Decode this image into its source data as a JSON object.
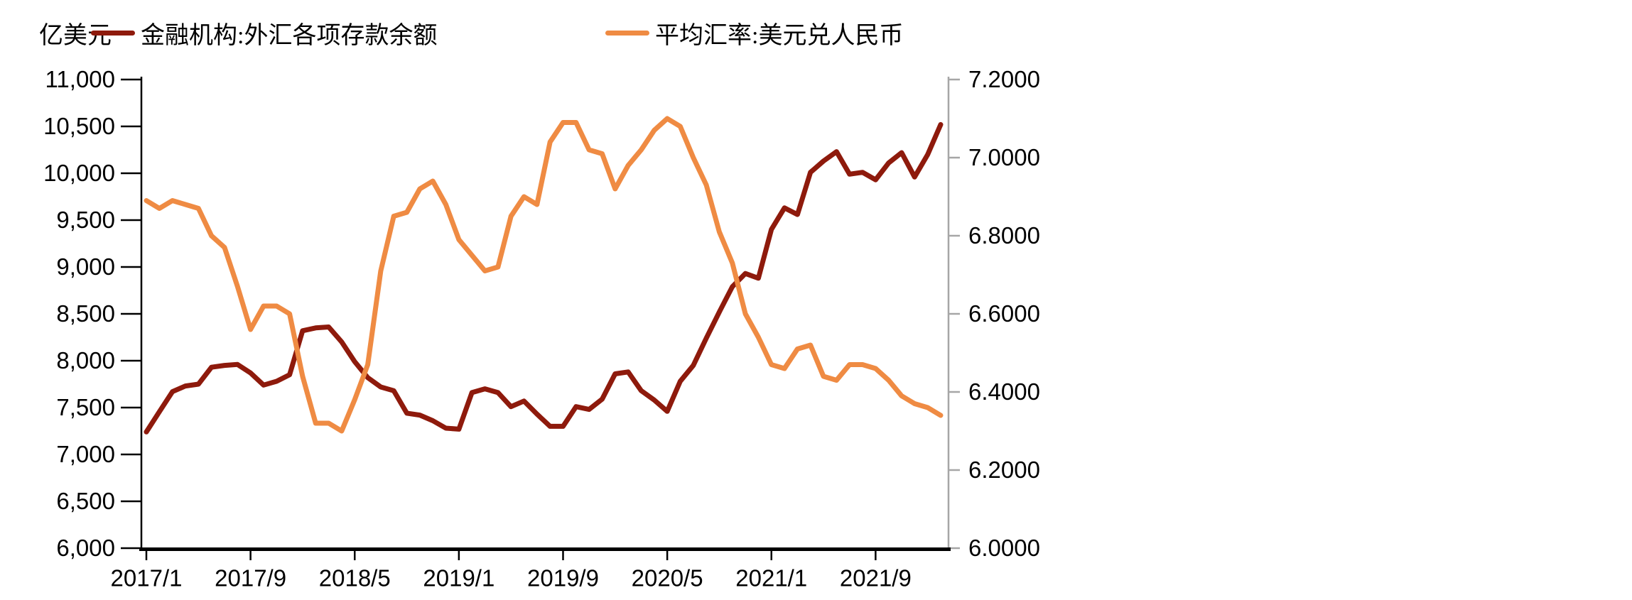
{
  "chart": {
    "unit_left": "亿美元",
    "legend": {
      "deposits_label": "金融机构:外汇各项存款余额",
      "rate_label": "平均汇率:美元兑人民币"
    },
    "colors": {
      "deposits": "#8E1A0C",
      "rate": "#EF8B43",
      "axis_left": "#000000",
      "axis_right": "#A6A6A6",
      "text": "#000000",
      "background": "#FFFFFF"
    }
  },
  "chart_data": {
    "type": "line",
    "title": "",
    "xlabel": "",
    "ylabel_left": "亿美元",
    "ylabel_right": "",
    "grid": false,
    "legend_position": "top",
    "categories": [
      "2017/1",
      "2017/2",
      "2017/3",
      "2017/4",
      "2017/5",
      "2017/6",
      "2017/7",
      "2017/8",
      "2017/9",
      "2017/10",
      "2017/11",
      "2017/12",
      "2018/1",
      "2018/2",
      "2018/3",
      "2018/4",
      "2018/5",
      "2018/6",
      "2018/7",
      "2018/8",
      "2018/9",
      "2018/10",
      "2018/11",
      "2018/12",
      "2019/1",
      "2019/2",
      "2019/3",
      "2019/4",
      "2019/5",
      "2019/6",
      "2019/7",
      "2019/8",
      "2019/9",
      "2019/10",
      "2019/11",
      "2019/12",
      "2020/1",
      "2020/2",
      "2020/3",
      "2020/4",
      "2020/5",
      "2020/6",
      "2020/7",
      "2020/8",
      "2020/9",
      "2020/10",
      "2020/11",
      "2020/12",
      "2021/1",
      "2021/2",
      "2021/3",
      "2021/4",
      "2021/5",
      "2021/6",
      "2021/7",
      "2021/8",
      "2021/9",
      "2021/10",
      "2021/11",
      "2021/12",
      "2022/1",
      "2022/2"
    ],
    "x_tick_labels": [
      "2017/1",
      "2017/9",
      "2018/5",
      "2019/1",
      "2019/9",
      "2020/5",
      "2021/1",
      "2021/9"
    ],
    "series": [
      {
        "name": "金融机构:外汇各项存款余额",
        "axis": "left",
        "color": "#8E1A0C",
        "values": [
          7240,
          7455,
          7670,
          7730,
          7750,
          7930,
          7950,
          7960,
          7870,
          7740,
          7780,
          7850,
          8320,
          8350,
          8360,
          8200,
          7990,
          7820,
          7720,
          7680,
          7440,
          7420,
          7360,
          7280,
          7270,
          7660,
          7700,
          7660,
          7510,
          7570,
          7430,
          7300,
          7300,
          7510,
          7480,
          7590,
          7860,
          7880,
          7680,
          7580,
          7460,
          7780,
          7950,
          8240,
          8520,
          8790,
          8930,
          8880,
          9400,
          9630,
          9560,
          10010,
          10130,
          10230,
          9990,
          10010,
          9930,
          10110,
          10220,
          9960,
          10200,
          10520
        ]
      },
      {
        "name": "平均汇率:美元兑人民币",
        "axis": "right",
        "color": "#EF8B43",
        "values": [
          6.89,
          6.87,
          6.89,
          6.88,
          6.87,
          6.8,
          6.77,
          6.67,
          6.56,
          6.62,
          6.62,
          6.6,
          6.44,
          6.32,
          6.32,
          6.3,
          6.38,
          6.47,
          6.71,
          6.85,
          6.86,
          6.92,
          6.94,
          6.88,
          6.79,
          6.75,
          6.71,
          6.72,
          6.85,
          6.9,
          6.88,
          7.04,
          7.09,
          7.09,
          7.02,
          7.01,
          6.92,
          6.98,
          7.02,
          7.07,
          7.1,
          7.08,
          7.0,
          6.93,
          6.81,
          6.73,
          6.6,
          6.54,
          6.47,
          6.46,
          6.51,
          6.52,
          6.44,
          6.43,
          6.47,
          6.47,
          6.46,
          6.43,
          6.39,
          6.37,
          6.36,
          6.34
        ]
      }
    ],
    "y_left": {
      "min": 6000,
      "max": 11000,
      "step": 500,
      "tick_labels": [
        "6,000",
        "6,500",
        "7,000",
        "7,500",
        "8,000",
        "8,500",
        "9,000",
        "9,500",
        "10,000",
        "10,500",
        "11,000"
      ]
    },
    "y_right": {
      "min": 6.0,
      "max": 7.2,
      "step": 0.2,
      "tick_labels": [
        "6.0000",
        "6.2000",
        "6.4000",
        "6.6000",
        "6.8000",
        "7.0000",
        "7.2000"
      ]
    }
  }
}
